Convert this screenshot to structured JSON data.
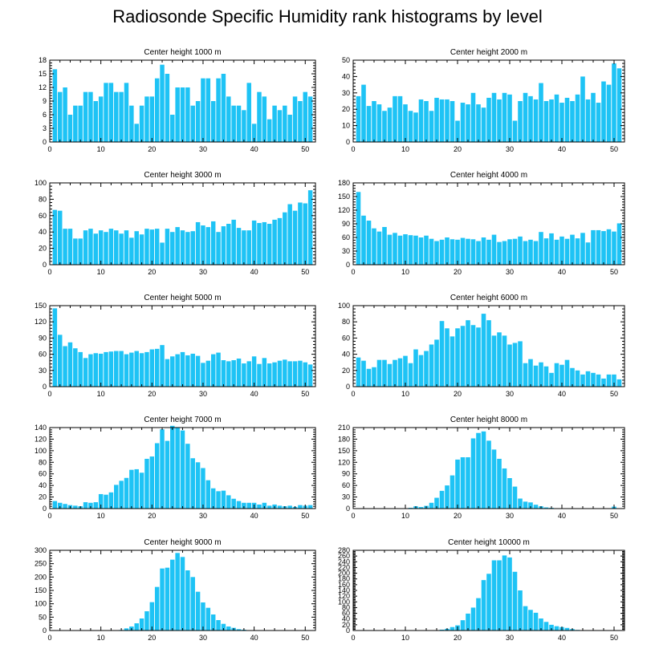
{
  "figure": {
    "title": "Radiosonde Specific Humidity rank histograms by level",
    "bar_color": "#1ec3f5",
    "axis_color": "#000000"
  },
  "chart_data": [
    {
      "type": "bar",
      "title": "Center height 1000 m",
      "xlim": [
        0,
        52
      ],
      "ylim": [
        0,
        18
      ],
      "xticks": [
        0,
        10,
        20,
        30,
        40,
        50
      ],
      "yticks": [
        0,
        3,
        6,
        9,
        12,
        15,
        18
      ],
      "values": [
        16,
        11,
        12,
        6,
        8,
        8,
        11,
        11,
        9,
        10,
        13,
        13,
        11,
        11,
        13,
        8,
        4,
        8,
        10,
        10,
        14,
        17,
        15,
        6,
        12,
        12,
        12,
        8,
        9,
        14,
        14,
        9,
        14,
        15,
        10,
        8,
        8,
        7,
        13,
        4,
        11,
        10,
        5,
        8,
        7,
        8,
        6,
        10,
        9,
        11,
        10
      ]
    },
    {
      "type": "bar",
      "title": "Center height 2000 m",
      "xlim": [
        0,
        52
      ],
      "ylim": [
        0,
        50
      ],
      "xticks": [
        0,
        10,
        20,
        30,
        40,
        50
      ],
      "yticks": [
        0,
        10,
        20,
        30,
        40,
        50
      ],
      "values": [
        28,
        35,
        22,
        25,
        23,
        19,
        21,
        28,
        28,
        23,
        19,
        18,
        26,
        25,
        19,
        27,
        26,
        26,
        25,
        13,
        24,
        23,
        30,
        23,
        21,
        27,
        30,
        26,
        30,
        29,
        13,
        25,
        30,
        28,
        26,
        36,
        25,
        26,
        29,
        24,
        27,
        25,
        29,
        40,
        26,
        30,
        24,
        37,
        35,
        48,
        45
      ]
    },
    {
      "type": "bar",
      "title": "Center height 3000 m",
      "xlim": [
        0,
        52
      ],
      "ylim": [
        0,
        100
      ],
      "xticks": [
        0,
        10,
        20,
        30,
        40,
        50
      ],
      "yticks": [
        0,
        20,
        40,
        60,
        80,
        100
      ],
      "values": [
        67,
        66,
        44,
        44,
        32,
        32,
        42,
        44,
        38,
        42,
        40,
        44,
        42,
        38,
        42,
        33,
        41,
        37,
        44,
        43,
        44,
        27,
        44,
        40,
        46,
        42,
        40,
        41,
        52,
        48,
        46,
        53,
        40,
        47,
        50,
        55,
        45,
        42,
        42,
        54,
        51,
        52,
        50,
        55,
        57,
        64,
        74,
        66,
        76,
        75,
        91
      ]
    },
    {
      "type": "bar",
      "title": "Center height 4000 m",
      "xlim": [
        0,
        52
      ],
      "ylim": [
        0,
        180
      ],
      "xticks": [
        0,
        10,
        20,
        30,
        40,
        50
      ],
      "yticks": [
        0,
        30,
        60,
        90,
        120,
        150,
        180
      ],
      "values": [
        160,
        108,
        97,
        80,
        73,
        83,
        66,
        70,
        64,
        67,
        65,
        64,
        60,
        64,
        57,
        52,
        55,
        60,
        56,
        55,
        59,
        57,
        56,
        52,
        60,
        55,
        66,
        50,
        52,
        56,
        57,
        62,
        52,
        55,
        52,
        72,
        58,
        69,
        55,
        62,
        57,
        66,
        58,
        70,
        49,
        76,
        76,
        74,
        78,
        73,
        91
      ]
    },
    {
      "type": "bar",
      "title": "Center height 5000 m",
      "xlim": [
        0,
        52
      ],
      "ylim": [
        0,
        150
      ],
      "xticks": [
        0,
        10,
        20,
        30,
        40,
        50
      ],
      "yticks": [
        0,
        30,
        60,
        90,
        120,
        150
      ],
      "values": [
        145,
        96,
        75,
        82,
        71,
        64,
        53,
        60,
        62,
        61,
        64,
        65,
        66,
        66,
        60,
        63,
        66,
        62,
        64,
        69,
        70,
        77,
        51,
        56,
        60,
        64,
        58,
        61,
        57,
        44,
        48,
        60,
        63,
        49,
        47,
        49,
        52,
        43,
        47,
        56,
        42,
        53,
        43,
        45,
        48,
        50,
        47,
        47,
        48,
        45,
        41
      ]
    },
    {
      "type": "bar",
      "title": "Center height 6000 m",
      "xlim": [
        0,
        52
      ],
      "ylim": [
        0,
        100
      ],
      "xticks": [
        0,
        10,
        20,
        30,
        40,
        50
      ],
      "yticks": [
        0,
        20,
        40,
        60,
        80,
        100
      ],
      "values": [
        36,
        32,
        22,
        24,
        33,
        33,
        28,
        33,
        35,
        38,
        29,
        46,
        39,
        44,
        52,
        58,
        81,
        72,
        62,
        72,
        75,
        82,
        76,
        73,
        90,
        82,
        63,
        67,
        63,
        52,
        54,
        56,
        29,
        34,
        26,
        30,
        25,
        17,
        29,
        27,
        33,
        23,
        20,
        15,
        19,
        17,
        15,
        10,
        15,
        15,
        9
      ]
    },
    {
      "type": "bar",
      "title": "Center height 7000 m",
      "xlim": [
        0,
        52
      ],
      "ylim": [
        0,
        140
      ],
      "xticks": [
        0,
        10,
        20,
        30,
        40,
        50
      ],
      "yticks": [
        0,
        20,
        40,
        60,
        80,
        100,
        120,
        140
      ],
      "values": [
        13,
        10,
        8,
        6,
        5,
        4,
        11,
        10,
        11,
        25,
        24,
        28,
        41,
        48,
        53,
        67,
        68,
        62,
        86,
        90,
        113,
        137,
        117,
        143,
        140,
        135,
        112,
        87,
        80,
        70,
        49,
        35,
        30,
        31,
        23,
        17,
        13,
        10,
        10,
        10,
        7,
        10,
        5,
        7,
        5,
        4,
        5,
        3,
        6,
        5,
        6
      ]
    },
    {
      "type": "bar",
      "title": "Center height 8000 m",
      "xlim": [
        0,
        52
      ],
      "ylim": [
        0,
        210
      ],
      "xticks": [
        0,
        10,
        20,
        30,
        40,
        50
      ],
      "yticks": [
        0,
        30,
        60,
        90,
        120,
        150,
        180,
        210
      ],
      "values": [
        1,
        1,
        0,
        0,
        0,
        0,
        0,
        0,
        0,
        1,
        2,
        6,
        4,
        7,
        15,
        28,
        46,
        60,
        86,
        127,
        133,
        133,
        182,
        196,
        200,
        176,
        153,
        129,
        104,
        79,
        57,
        26,
        18,
        16,
        10,
        6,
        3,
        2,
        0,
        1,
        0,
        0,
        0,
        0,
        0,
        0,
        0,
        0,
        0,
        5,
        1
      ]
    },
    {
      "type": "bar",
      "title": "Center height 9000 m",
      "xlim": [
        0,
        52
      ],
      "ylim": [
        0,
        300
      ],
      "xticks": [
        0,
        10,
        20,
        30,
        40,
        50
      ],
      "yticks": [
        0,
        50,
        100,
        150,
        200,
        250,
        300
      ],
      "values": [
        0,
        0,
        0,
        0,
        0,
        0,
        0,
        0,
        0,
        0,
        0,
        0,
        1,
        2,
        8,
        15,
        27,
        45,
        72,
        106,
        163,
        232,
        235,
        265,
        290,
        275,
        225,
        200,
        145,
        105,
        85,
        60,
        39,
        25,
        15,
        10,
        5,
        3,
        1,
        0,
        0,
        0,
        0,
        0,
        0,
        0,
        0,
        0,
        0,
        0,
        0
      ]
    },
    {
      "type": "bar",
      "title": "Center height 10000 m",
      "xlim": [
        0,
        52
      ],
      "ylim": [
        0,
        280
      ],
      "xticks": [
        0,
        10,
        20,
        30,
        40,
        50
      ],
      "yticks": [
        0,
        20,
        40,
        60,
        80,
        100,
        120,
        140,
        160,
        180,
        200,
        220,
        240,
        260,
        280
      ],
      "values": [
        0,
        0,
        0,
        0,
        0,
        0,
        0,
        0,
        0,
        0,
        0,
        0,
        0,
        0,
        0,
        1,
        3,
        6,
        12,
        18,
        36,
        59,
        80,
        113,
        176,
        198,
        245,
        245,
        262,
        255,
        205,
        140,
        85,
        72,
        62,
        42,
        30,
        20,
        15,
        12,
        9,
        5,
        2,
        1,
        0,
        0,
        0,
        0,
        0,
        0,
        0
      ]
    }
  ]
}
